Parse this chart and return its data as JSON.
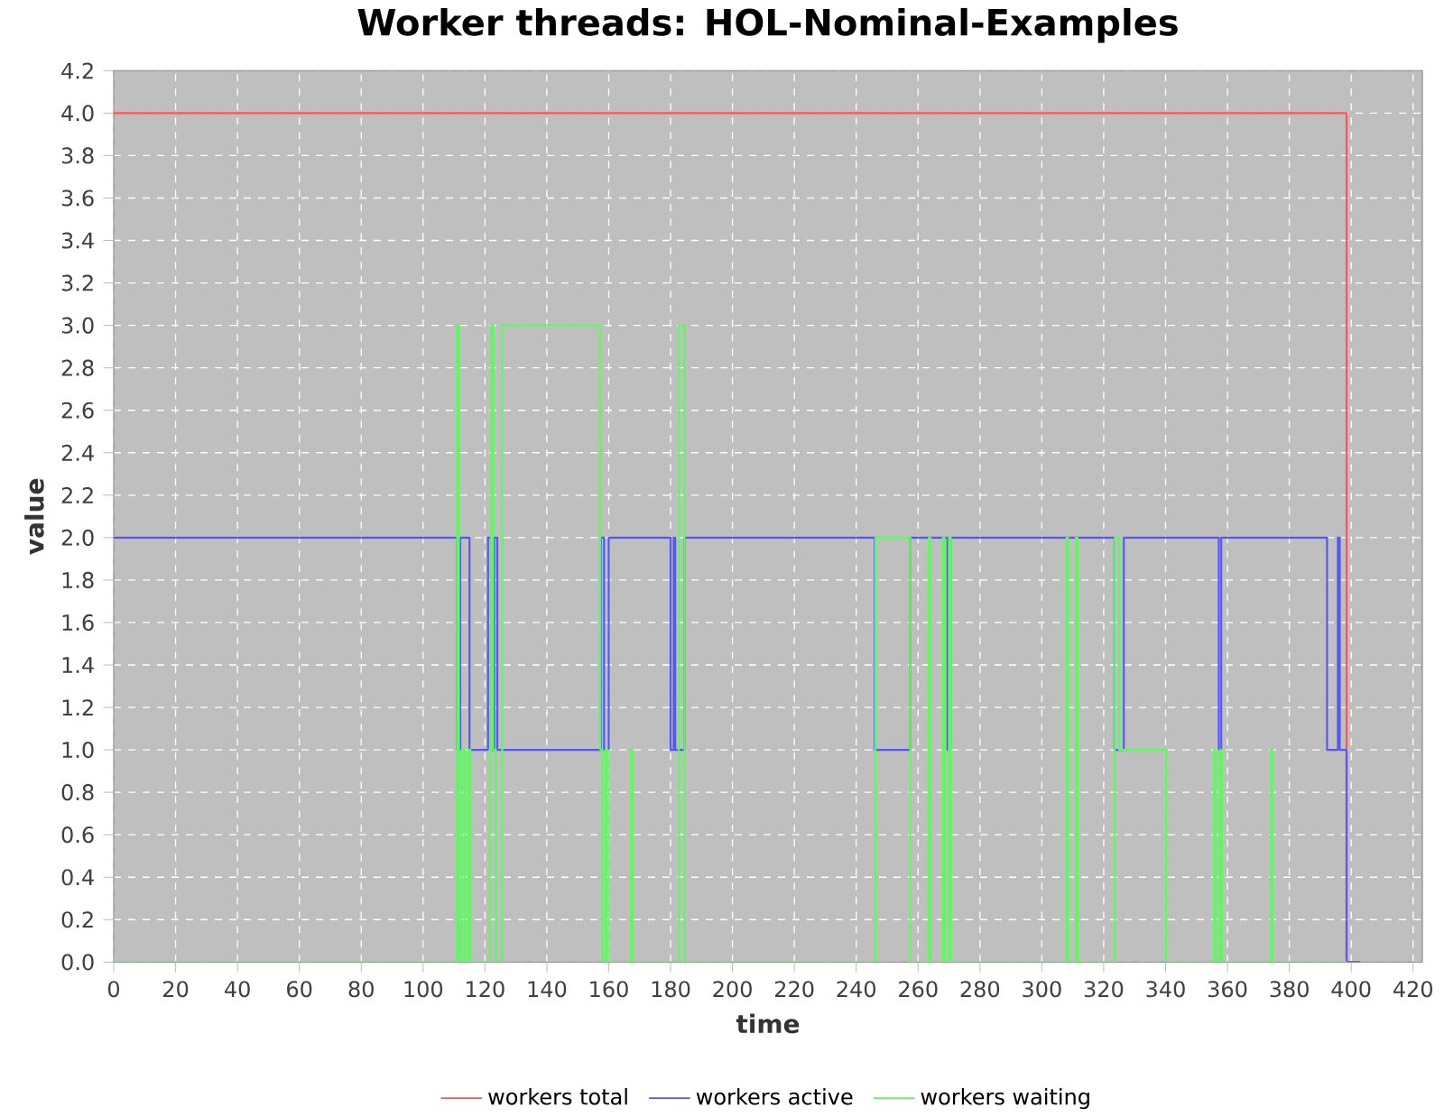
{
  "chart_data": {
    "type": "step",
    "title": "Worker threads: HOL-Nominal-Examples",
    "xlabel": "time",
    "ylabel": "value",
    "xlim": [
      0,
      423
    ],
    "ylim": [
      0,
      4.2
    ],
    "xticks": [
      0,
      20,
      40,
      60,
      80,
      100,
      120,
      140,
      160,
      180,
      200,
      220,
      240,
      260,
      280,
      300,
      320,
      340,
      360,
      380,
      400,
      420
    ],
    "yticks": [
      {
        "value": 0,
        "label": "0.0"
      },
      {
        "value": 0.2,
        "label": "0.2"
      },
      {
        "value": 0.4,
        "label": "0.4"
      },
      {
        "value": 0.6,
        "label": "0.6"
      },
      {
        "value": 0.8,
        "label": "0.8"
      },
      {
        "value": 1,
        "label": "1.0"
      },
      {
        "value": 1.2,
        "label": "1.2"
      },
      {
        "value": 1.4,
        "label": "1.4"
      },
      {
        "value": 1.6,
        "label": "1.6"
      },
      {
        "value": 1.8,
        "label": "1.8"
      },
      {
        "value": 2,
        "label": "2.0"
      },
      {
        "value": 2.2,
        "label": "2.2"
      },
      {
        "value": 2.4,
        "label": "2.4"
      },
      {
        "value": 2.6,
        "label": "2.6"
      },
      {
        "value": 2.8,
        "label": "2.8"
      },
      {
        "value": 3,
        "label": "3.0"
      },
      {
        "value": 3.2,
        "label": "3.2"
      },
      {
        "value": 3.4,
        "label": "3.4"
      },
      {
        "value": 3.6,
        "label": "3.6"
      },
      {
        "value": 3.8,
        "label": "3.8"
      },
      {
        "value": 4,
        "label": "4.0"
      },
      {
        "value": 4.2,
        "label": "4.2"
      }
    ],
    "grid": true,
    "legend": "bottom",
    "marker": "none",
    "line_style": "solid",
    "series": [
      {
        "name": "workers total",
        "color": "#ff5555",
        "x": [
          0,
          398.5,
          403
        ],
        "values": [
          4,
          0,
          0
        ]
      },
      {
        "name": "workers active",
        "color": "#5555ff",
        "x": [
          0,
          111,
          112,
          115,
          121,
          122,
          123,
          124,
          157.5,
          158.5,
          160,
          180,
          181,
          181.5,
          184.5,
          246,
          257.5,
          269.5,
          270.5,
          323.5,
          326.5,
          357.2,
          358,
          392.2,
          395.7,
          396.3,
          398.5,
          403
        ],
        "values": [
          2,
          1,
          2,
          1,
          2,
          1,
          2,
          1,
          2,
          1,
          2,
          1,
          2,
          1,
          2,
          1,
          2,
          1,
          2,
          1,
          2,
          1,
          2,
          1,
          2,
          1,
          0,
          0
        ]
      },
      {
        "name": "workers waiting",
        "color": "#55ff55",
        "x": [
          0,
          111,
          111.6,
          112.5,
          113.5,
          114.5,
          115.3,
          121.5,
          122,
          122.6,
          123.5,
          125.6,
          157.3,
          158,
          159,
          159.8,
          167.3,
          167.8,
          182.6,
          184.5,
          246.2,
          257.5,
          263.5,
          264,
          268,
          268.6,
          270,
          270.6,
          308,
          308.5,
          311,
          311.5,
          323.6,
          325,
          340.1,
          355.7,
          356.3,
          357.6,
          358.2,
          374,
          374.5,
          398.5
        ],
        "values": [
          0,
          3,
          0,
          1,
          0,
          1,
          0,
          1,
          3,
          1,
          0,
          3,
          1,
          0,
          1,
          0,
          1,
          0,
          3,
          0,
          2,
          0,
          2,
          0,
          2,
          0,
          2,
          0,
          2,
          0,
          2,
          0,
          2,
          1,
          0,
          1,
          0,
          1,
          0,
          1,
          0,
          0
        ]
      }
    ]
  }
}
